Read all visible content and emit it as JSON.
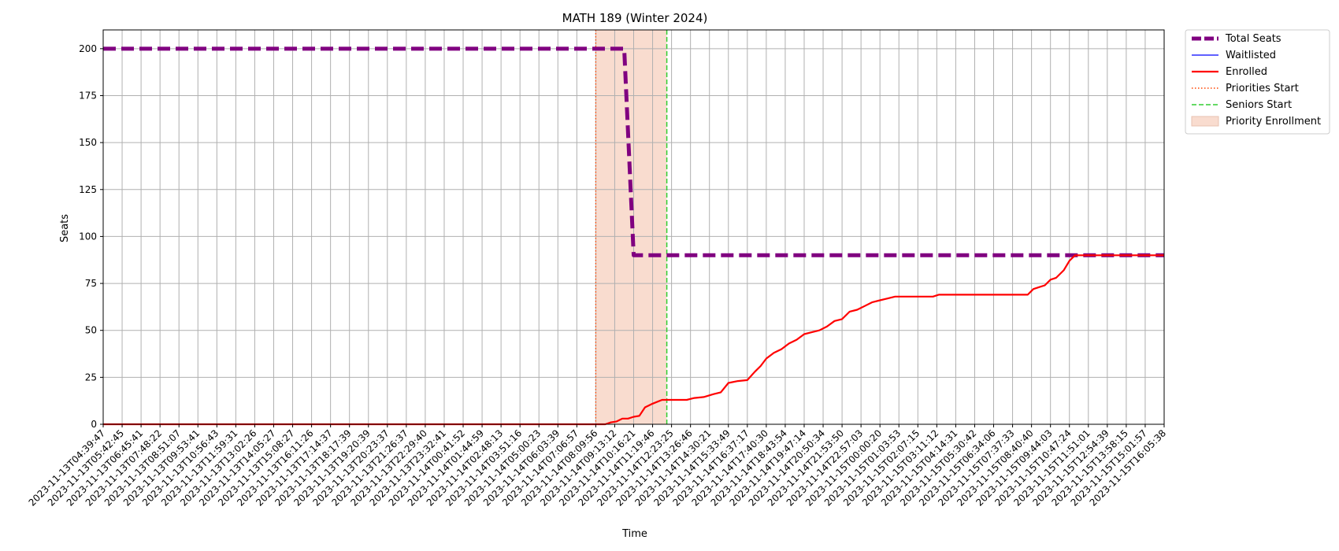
{
  "chart_data": {
    "type": "line",
    "title": "MATH 189 (Winter 2024)",
    "xlabel": "Time",
    "ylabel": "Seats",
    "ylim": [
      0,
      210
    ],
    "yticks": [
      0,
      25,
      50,
      75,
      100,
      125,
      150,
      175,
      200
    ],
    "grid": true,
    "legend_position": "outside-top-right",
    "x_tick_labels": [
      "2023-11-13T04:39:47",
      "2023-11-13T05:42:45",
      "2023-11-13T06:45:41",
      "2023-11-13T07:48:22",
      "2023-11-13T08:51:07",
      "2023-11-13T09:53:41",
      "2023-11-13T10:56:43",
      "2023-11-13T11:59:31",
      "2023-11-13T13:02:26",
      "2023-11-13T14:05:27",
      "2023-11-13T15:08:27",
      "2023-11-13T16:11:26",
      "2023-11-13T17:14:37",
      "2023-11-13T18:17:39",
      "2023-11-13T19:20:39",
      "2023-11-13T20:23:37",
      "2023-11-13T21:26:37",
      "2023-11-13T22:29:40",
      "2023-11-13T23:32:41",
      "2023-11-14T00:41:52",
      "2023-11-14T01:44:59",
      "2023-11-14T02:48:13",
      "2023-11-14T03:51:16",
      "2023-11-14T05:00:23",
      "2023-11-14T06:03:39",
      "2023-11-14T07:06:57",
      "2023-11-14T08:09:56",
      "2023-11-14T09:13:12",
      "2023-11-14T10:16:21",
      "2023-11-14T11:19:46",
      "2023-11-14T12:23:25",
      "2023-11-14T13:26:46",
      "2023-11-14T14:30:21",
      "2023-11-14T15:33:49",
      "2023-11-14T16:37:17",
      "2023-11-14T17:40:30",
      "2023-11-14T18:43:54",
      "2023-11-14T19:47:14",
      "2023-11-14T20:50:34",
      "2023-11-14T21:53:50",
      "2023-11-14T22:57:03",
      "2023-11-15T00:00:20",
      "2023-11-15T01:03:53",
      "2023-11-15T02:07:15",
      "2023-11-15T03:11:12",
      "2023-11-15T04:14:31",
      "2023-11-15T05:30:42",
      "2023-11-15T06:34:06",
      "2023-11-15T07:37:33",
      "2023-11-15T08:40:40",
      "2023-11-15T09:44:03",
      "2023-11-15T10:47:24",
      "2023-11-15T11:51:01",
      "2023-11-15T12:54:39",
      "2023-11-15T13:58:15",
      "2023-11-15T15:01:57",
      "2023-11-15T16:05:38"
    ],
    "priorities_start_index": 26,
    "seniors_start_index": 29.75,
    "series": [
      {
        "name": "Total Seats",
        "color": "#800080",
        "style": "dashed-thick",
        "points": [
          [
            0,
            200
          ],
          [
            27.5,
            200
          ],
          [
            28,
            90
          ],
          [
            56,
            90
          ]
        ]
      },
      {
        "name": "Waitlisted",
        "color": "#0000ff",
        "style": "solid-thin",
        "points": []
      },
      {
        "name": "Enrolled",
        "color": "#ff0000",
        "style": "solid",
        "points": [
          [
            0,
            0
          ],
          [
            26.5,
            0
          ],
          [
            26.8,
            1
          ],
          [
            27.1,
            1.5
          ],
          [
            27.4,
            3
          ],
          [
            27.7,
            3
          ],
          [
            28,
            4
          ],
          [
            28.3,
            4.5
          ],
          [
            28.6,
            9
          ],
          [
            29,
            11
          ],
          [
            29.5,
            13
          ],
          [
            30,
            13
          ],
          [
            30.8,
            13
          ],
          [
            31.2,
            14
          ],
          [
            31.7,
            14.5
          ],
          [
            32.2,
            16
          ],
          [
            32.6,
            17
          ],
          [
            33,
            22
          ],
          [
            33.5,
            23
          ],
          [
            34,
            23.5
          ],
          [
            34.4,
            28
          ],
          [
            34.7,
            31
          ],
          [
            35,
            35
          ],
          [
            35.4,
            38
          ],
          [
            35.8,
            40
          ],
          [
            36.2,
            43
          ],
          [
            36.6,
            45
          ],
          [
            37,
            48
          ],
          [
            37.4,
            49
          ],
          [
            37.8,
            50
          ],
          [
            38.2,
            52
          ],
          [
            38.6,
            55
          ],
          [
            39,
            56
          ],
          [
            39.4,
            60
          ],
          [
            39.8,
            61
          ],
          [
            40.2,
            63
          ],
          [
            40.6,
            65
          ],
          [
            41,
            66
          ],
          [
            41.4,
            67
          ],
          [
            41.8,
            68
          ],
          [
            43.8,
            68
          ],
          [
            44.1,
            69
          ],
          [
            48.8,
            69
          ],
          [
            49.1,
            72
          ],
          [
            49.4,
            73
          ],
          [
            49.7,
            74
          ],
          [
            50,
            77
          ],
          [
            50.3,
            78
          ],
          [
            50.7,
            82
          ],
          [
            51,
            87
          ],
          [
            51.3,
            90
          ],
          [
            56,
            90
          ]
        ]
      }
    ],
    "legend": [
      {
        "label": "Total Seats",
        "color": "#800080",
        "kind": "thick-dashed"
      },
      {
        "label": "Waitlisted",
        "color": "#0000ff",
        "kind": "thin-line"
      },
      {
        "label": "Enrolled",
        "color": "#ff0000",
        "kind": "line"
      },
      {
        "label": "Priorities Start",
        "color": "#ff4500",
        "kind": "dotted"
      },
      {
        "label": "Seniors Start",
        "color": "#32cd32",
        "kind": "dashed"
      },
      {
        "label": "Priority Enrollment",
        "color": "#f9dccf",
        "kind": "patch"
      }
    ]
  }
}
